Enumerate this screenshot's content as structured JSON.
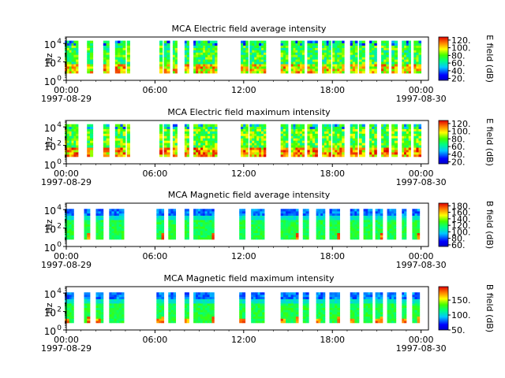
{
  "chart_data": [
    {
      "type": "heatmap",
      "title": "MCA  Electric field average intensity",
      "ylabel": "Hz",
      "y_scale": "log",
      "ylim": [
        1,
        30000
      ],
      "y_ticks": [
        {
          "label": "10",
          "sup": "0",
          "value": 1
        },
        {
          "label": "10",
          "sup": "2",
          "value": 100
        },
        {
          "label": "10",
          "sup": "4",
          "value": 10000
        }
      ],
      "xlim": [
        "1997-08-29 00:00",
        "1997-08-30 00:30"
      ],
      "x_ticks": [
        {
          "time": "00:00",
          "date": "1997-08-29"
        },
        {
          "time": "06:00",
          "date": ""
        },
        {
          "time": "12:00",
          "date": ""
        },
        {
          "time": "18:00",
          "date": ""
        },
        {
          "time": "00:00",
          "date": "1997-08-30"
        }
      ],
      "colorbar": {
        "label": "E field (dB)",
        "range": [
          15,
          128
        ],
        "ticks": [
          20,
          40,
          60,
          80,
          100,
          120
        ]
      },
      "data_blocks_hours": [
        [
          -0.1,
          0.8
        ],
        [
          1.4,
          1.8
        ],
        [
          2.5,
          2.9
        ],
        [
          3.3,
          4.0
        ],
        [
          4.1,
          4.3
        ],
        [
          6.3,
          6.5
        ],
        [
          6.6,
          7.0
        ],
        [
          7.2,
          7.5
        ],
        [
          8.0,
          8.3
        ],
        [
          8.6,
          10.2
        ],
        [
          11.8,
          12.3
        ],
        [
          12.4,
          13.5
        ],
        [
          14.5,
          15.0
        ],
        [
          15.2,
          16.1
        ],
        [
          16.3,
          17.0
        ],
        [
          17.3,
          17.9
        ],
        [
          18.0,
          18.8
        ],
        [
          19.2,
          19.7
        ],
        [
          19.8,
          20.2
        ],
        [
          20.5,
          21.0
        ],
        [
          21.3,
          21.8
        ],
        [
          22.0,
          22.4
        ],
        [
          22.7,
          23.3
        ],
        [
          23.5,
          24.0
        ]
      ]
    },
    {
      "type": "heatmap",
      "title": "MCA  Electric field maximum intensity",
      "ylabel": "Hz",
      "y_scale": "log",
      "ylim": [
        1,
        30000
      ],
      "y_ticks": [
        {
          "label": "10",
          "sup": "0",
          "value": 1
        },
        {
          "label": "10",
          "sup": "2",
          "value": 100
        },
        {
          "label": "10",
          "sup": "4",
          "value": 10000
        }
      ],
      "xlim": [
        "1997-08-29 00:00",
        "1997-08-30 00:30"
      ],
      "x_ticks": [
        {
          "time": "00:00",
          "date": "1997-08-29"
        },
        {
          "time": "06:00",
          "date": ""
        },
        {
          "time": "12:00",
          "date": ""
        },
        {
          "time": "18:00",
          "date": ""
        },
        {
          "time": "00:00",
          "date": "1997-08-30"
        }
      ],
      "colorbar": {
        "label": "E field (dB)",
        "range": [
          15,
          128
        ],
        "ticks": [
          20,
          40,
          60,
          80,
          100,
          120
        ]
      },
      "data_blocks_hours": [
        [
          -0.1,
          0.8
        ],
        [
          1.4,
          1.8
        ],
        [
          2.5,
          2.9
        ],
        [
          3.3,
          4.0
        ],
        [
          4.1,
          4.3
        ],
        [
          6.3,
          6.5
        ],
        [
          6.6,
          7.0
        ],
        [
          7.2,
          7.5
        ],
        [
          8.0,
          8.3
        ],
        [
          8.6,
          10.2
        ],
        [
          11.8,
          12.3
        ],
        [
          12.4,
          13.5
        ],
        [
          14.5,
          15.0
        ],
        [
          15.2,
          16.1
        ],
        [
          16.3,
          17.0
        ],
        [
          17.3,
          17.9
        ],
        [
          18.0,
          18.8
        ],
        [
          19.2,
          19.7
        ],
        [
          19.8,
          20.2
        ],
        [
          20.5,
          21.0
        ],
        [
          21.3,
          21.8
        ],
        [
          22.0,
          22.4
        ],
        [
          22.7,
          23.3
        ],
        [
          23.5,
          24.0
        ]
      ]
    },
    {
      "type": "heatmap",
      "title": "MCA  Magnetic field average intensity",
      "ylabel": "Hz",
      "y_scale": "log",
      "ylim": [
        1,
        30000
      ],
      "y_ticks": [
        {
          "label": "10",
          "sup": "0",
          "value": 1
        },
        {
          "label": "10",
          "sup": "2",
          "value": 100
        },
        {
          "label": "10",
          "sup": "4",
          "value": 10000
        }
      ],
      "xlim": [
        "1997-08-29 00:00",
        "1997-08-30 00:30"
      ],
      "x_ticks": [
        {
          "time": "00:00",
          "date": "1997-08-29"
        },
        {
          "time": "06:00",
          "date": ""
        },
        {
          "time": "12:00",
          "date": ""
        },
        {
          "time": "18:00",
          "date": ""
        },
        {
          "time": "00:00",
          "date": "1997-08-30"
        }
      ],
      "colorbar": {
        "label": "B field (dB)",
        "range": [
          55,
          188
        ],
        "ticks": [
          60,
          80,
          100,
          120,
          140,
          160,
          180
        ]
      },
      "data_blocks_hours": [
        [
          -0.1,
          0.5
        ],
        [
          1.2,
          1.6
        ],
        [
          2.0,
          2.5
        ],
        [
          2.9,
          3.9
        ],
        [
          6.1,
          6.6
        ],
        [
          6.9,
          7.4
        ],
        [
          8.0,
          8.3
        ],
        [
          8.6,
          10.0
        ],
        [
          11.7,
          12.1
        ],
        [
          12.5,
          13.4
        ],
        [
          14.5,
          15.7
        ],
        [
          16.0,
          16.4
        ],
        [
          16.9,
          17.5
        ],
        [
          17.8,
          18.5
        ],
        [
          19.2,
          19.8
        ],
        [
          20.1,
          20.7
        ],
        [
          20.9,
          21.4
        ],
        [
          21.7,
          22.3
        ],
        [
          22.7,
          23.0
        ],
        [
          23.4,
          23.9
        ]
      ]
    },
    {
      "type": "heatmap",
      "title": "MCA  Magnetic field maximum intensity",
      "ylabel": "Hz",
      "y_scale": "log",
      "ylim": [
        1,
        30000
      ],
      "y_ticks": [
        {
          "label": "10",
          "sup": "0",
          "value": 1
        },
        {
          "label": "10",
          "sup": "2",
          "value": 100
        },
        {
          "label": "10",
          "sup": "4",
          "value": 10000
        }
      ],
      "xlim": [
        "1997-08-29 00:00",
        "1997-08-30 00:30"
      ],
      "x_ticks": [
        {
          "time": "00:00",
          "date": "1997-08-29"
        },
        {
          "time": "06:00",
          "date": ""
        },
        {
          "time": "12:00",
          "date": ""
        },
        {
          "time": "18:00",
          "date": ""
        },
        {
          "time": "00:00",
          "date": "1997-08-30"
        }
      ],
      "colorbar": {
        "label": "B field (dB)",
        "range": [
          50,
          195
        ],
        "ticks": [
          50,
          100,
          150
        ],
        "tick_labels": [
          "50.",
          "100.",
          "150."
        ]
      },
      "data_blocks_hours": [
        [
          -0.1,
          0.5
        ],
        [
          1.2,
          1.6
        ],
        [
          2.0,
          2.5
        ],
        [
          2.9,
          3.9
        ],
        [
          6.1,
          6.6
        ],
        [
          6.9,
          7.4
        ],
        [
          8.0,
          8.3
        ],
        [
          8.6,
          10.0
        ],
        [
          11.7,
          12.1
        ],
        [
          12.5,
          13.4
        ],
        [
          14.5,
          15.7
        ],
        [
          16.0,
          16.4
        ],
        [
          16.9,
          17.5
        ],
        [
          17.8,
          18.5
        ],
        [
          19.2,
          19.8
        ],
        [
          20.1,
          20.7
        ],
        [
          20.9,
          21.4
        ],
        [
          21.7,
          22.3
        ],
        [
          22.7,
          23.0
        ],
        [
          23.4,
          23.9
        ]
      ]
    }
  ]
}
